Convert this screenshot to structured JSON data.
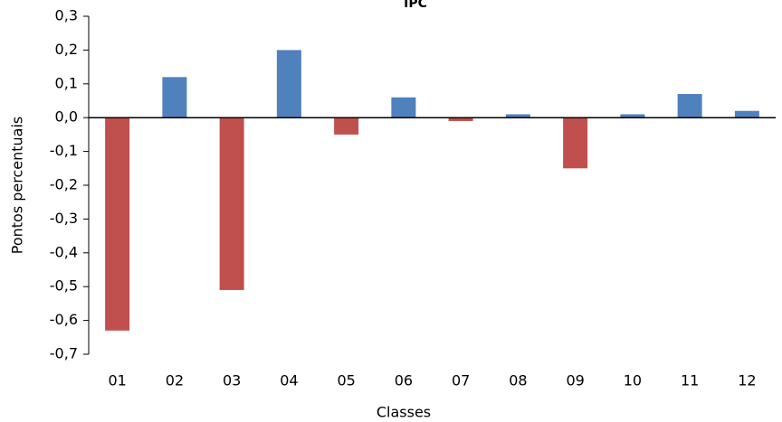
{
  "chart_data": {
    "type": "bar",
    "title": "IPC",
    "x_label": "Classes",
    "y_label": "Pontos percentuais",
    "categories": [
      "01",
      "02",
      "03",
      "04",
      "05",
      "06",
      "07",
      "08",
      "09",
      "10",
      "11",
      "12"
    ],
    "values": [
      -0.63,
      0.12,
      -0.51,
      0.2,
      -0.05,
      0.06,
      -0.01,
      0.01,
      -0.15,
      0.01,
      0.07,
      0.02
    ],
    "color_positive": "#4f81bd",
    "color_negative": "#c0504d",
    "ylim": [
      -0.7,
      0.3
    ],
    "yticks": [
      {
        "value": -0.7,
        "label": "-0,7"
      },
      {
        "value": -0.6,
        "label": "-0,6"
      },
      {
        "value": -0.5,
        "label": "-0,5"
      },
      {
        "value": -0.4,
        "label": "-0,4"
      },
      {
        "value": -0.3,
        "label": "-0,3"
      },
      {
        "value": -0.2,
        "label": "-0,2"
      },
      {
        "value": -0.1,
        "label": "-0,1"
      },
      {
        "value": 0,
        "label": "0,0"
      },
      {
        "value": 0.1,
        "label": "0,1"
      },
      {
        "value": 0.2,
        "label": "0,2"
      },
      {
        "value": 0.3,
        "label": "0,3"
      }
    ],
    "grid": false
  }
}
